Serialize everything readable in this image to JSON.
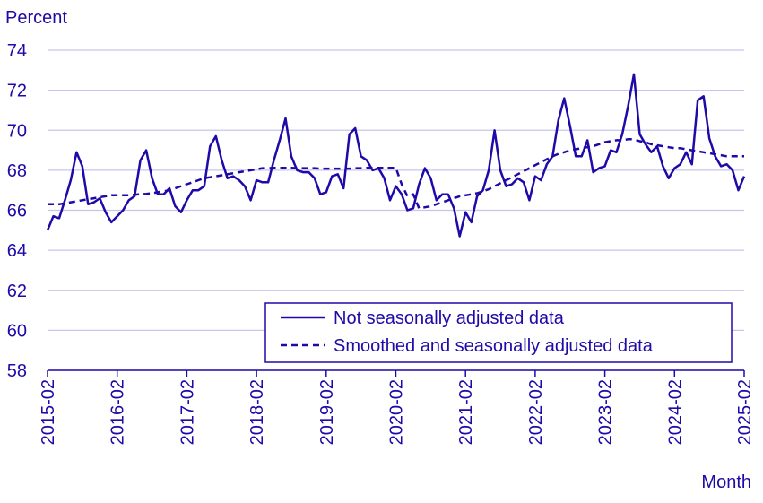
{
  "chart_data": {
    "type": "line",
    "ylabel": "Percent",
    "xlabel": "Month",
    "ylim": [
      58,
      74
    ],
    "yticks": [
      58,
      60,
      62,
      64,
      66,
      68,
      70,
      72,
      74
    ],
    "xticks": [
      "2015-02",
      "2016-02",
      "2017-02",
      "2018-02",
      "2019-02",
      "2020-02",
      "2021-02",
      "2022-02",
      "2023-02",
      "2024-02",
      "2025-02"
    ],
    "x_start": "2015-02",
    "x_end": "2025-02",
    "grid": "horizontal",
    "legend_position": "bottom-right",
    "line_color": "#1e0aa8",
    "series": [
      {
        "name": "Not seasonally adjusted data",
        "style": "solid",
        "values": [
          65.0,
          65.7,
          65.6,
          66.5,
          67.5,
          68.9,
          68.2,
          66.3,
          66.4,
          66.6,
          65.9,
          65.4,
          65.7,
          66.0,
          66.5,
          66.7,
          68.5,
          69.0,
          67.6,
          66.8,
          66.8,
          67.1,
          66.2,
          65.9,
          66.5,
          67.0,
          67.0,
          67.2,
          69.2,
          69.7,
          68.5,
          67.6,
          67.7,
          67.5,
          67.2,
          66.5,
          67.5,
          67.4,
          67.4,
          68.5,
          69.5,
          70.6,
          68.7,
          68.0,
          67.9,
          67.9,
          67.6,
          66.8,
          66.9,
          67.7,
          67.8,
          67.1,
          69.8,
          70.1,
          68.7,
          68.5,
          68.0,
          68.1,
          67.6,
          66.5,
          67.2,
          66.8,
          66.0,
          66.1,
          67.3,
          68.1,
          67.6,
          66.5,
          66.8,
          66.8,
          66.1,
          64.7,
          65.9,
          65.4,
          66.7,
          67.0,
          68.0,
          70.0,
          68.0,
          67.2,
          67.3,
          67.6,
          67.4,
          66.5,
          67.7,
          67.5,
          68.3,
          68.7,
          70.5,
          71.6,
          70.2,
          68.7,
          68.7,
          69.5,
          67.9,
          68.1,
          68.2,
          69.0,
          68.9,
          69.8,
          71.2,
          72.8,
          69.8,
          69.3,
          68.9,
          69.2,
          68.2,
          67.6,
          68.1,
          68.3,
          68.9,
          68.3,
          71.5,
          71.7,
          69.6,
          68.7,
          68.2,
          68.3,
          68.0,
          67.0,
          67.7
        ]
      },
      {
        "name": "Smoothed and seasonally adjusted data",
        "style": "dashed",
        "values": [
          66.3,
          66.3,
          66.3,
          66.35,
          66.4,
          66.45,
          66.5,
          66.55,
          66.6,
          66.65,
          66.7,
          66.75,
          66.75,
          66.75,
          66.75,
          66.78,
          66.8,
          66.82,
          66.85,
          66.9,
          66.95,
          67.0,
          67.1,
          67.2,
          67.3,
          67.4,
          67.5,
          67.6,
          67.65,
          67.7,
          67.75,
          67.8,
          67.85,
          67.9,
          67.95,
          68.0,
          68.05,
          68.1,
          68.1,
          68.12,
          68.12,
          68.12,
          68.12,
          68.1,
          68.1,
          68.1,
          68.1,
          68.08,
          68.08,
          68.08,
          68.08,
          68.08,
          68.08,
          68.1,
          68.1,
          68.12,
          68.12,
          68.12,
          68.12,
          68.12,
          68.12,
          67.3,
          66.7,
          66.8,
          66.1,
          66.15,
          66.2,
          66.3,
          66.4,
          66.5,
          66.6,
          66.7,
          66.75,
          66.8,
          66.85,
          66.95,
          67.05,
          67.2,
          67.35,
          67.5,
          67.65,
          67.8,
          67.95,
          68.1,
          68.25,
          68.4,
          68.55,
          68.7,
          68.82,
          68.9,
          69.0,
          69.05,
          69.1,
          69.15,
          69.2,
          69.3,
          69.4,
          69.45,
          69.5,
          69.5,
          69.55,
          69.55,
          69.45,
          69.4,
          69.3,
          69.25,
          69.2,
          69.15,
          69.1,
          69.1,
          69.05,
          69.0,
          68.95,
          68.9,
          68.85,
          68.8,
          68.75,
          68.7,
          68.7,
          68.7,
          68.7
        ]
      }
    ]
  }
}
